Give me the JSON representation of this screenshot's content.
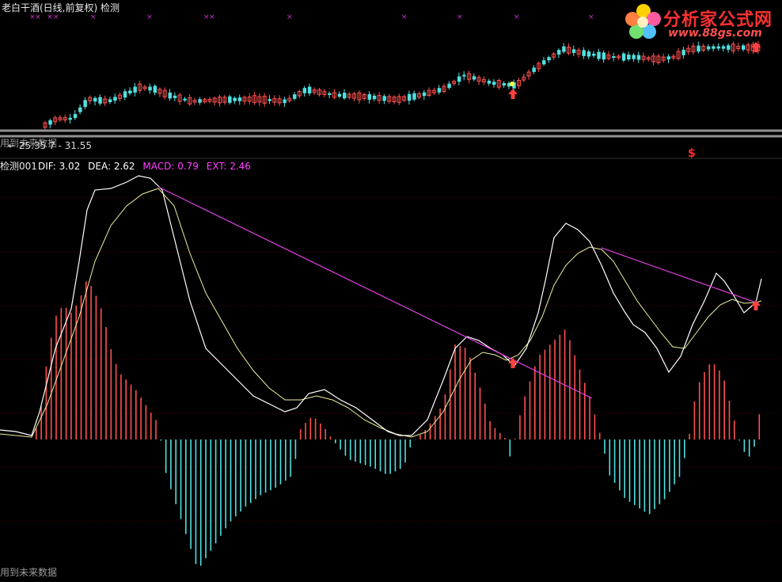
{
  "header": {
    "title": "老白干酒(日线,前复权) 检测",
    "price_readout": "← 25.35  7 - 31.55",
    "future_label_top": "用到未来数据",
    "future_label_bottom": "用到未来数据",
    "dollar_mark": "$"
  },
  "indicator": {
    "name": "检测001",
    "legend": [
      {
        "key": "DIF",
        "text": "DIF: 3.02",
        "color": "#ffffff"
      },
      {
        "key": "DEA",
        "text": "DEA: 2.62",
        "color": "#ffffff"
      },
      {
        "key": "MACD",
        "text": "MACD: 0.79",
        "color": "#ff40ff"
      },
      {
        "key": "EXT",
        "text": "EXT: 2.46",
        "color": "#ff40ff"
      }
    ]
  },
  "logo": {
    "text": "分析家公式网",
    "url": "www.88gs.com"
  },
  "colors": {
    "up": "#ff5050",
    "down": "#50e0e0",
    "dif": "#ffffff",
    "dea": "#f0f0a0",
    "trend": "#e040e0",
    "marker": "#ff4040",
    "xmark": "#d030d0",
    "grid": "#5a0000"
  },
  "icons": {
    "arrow_marker": "up-arrow-icon",
    "x_marker": "x-mark-icon"
  }
}
